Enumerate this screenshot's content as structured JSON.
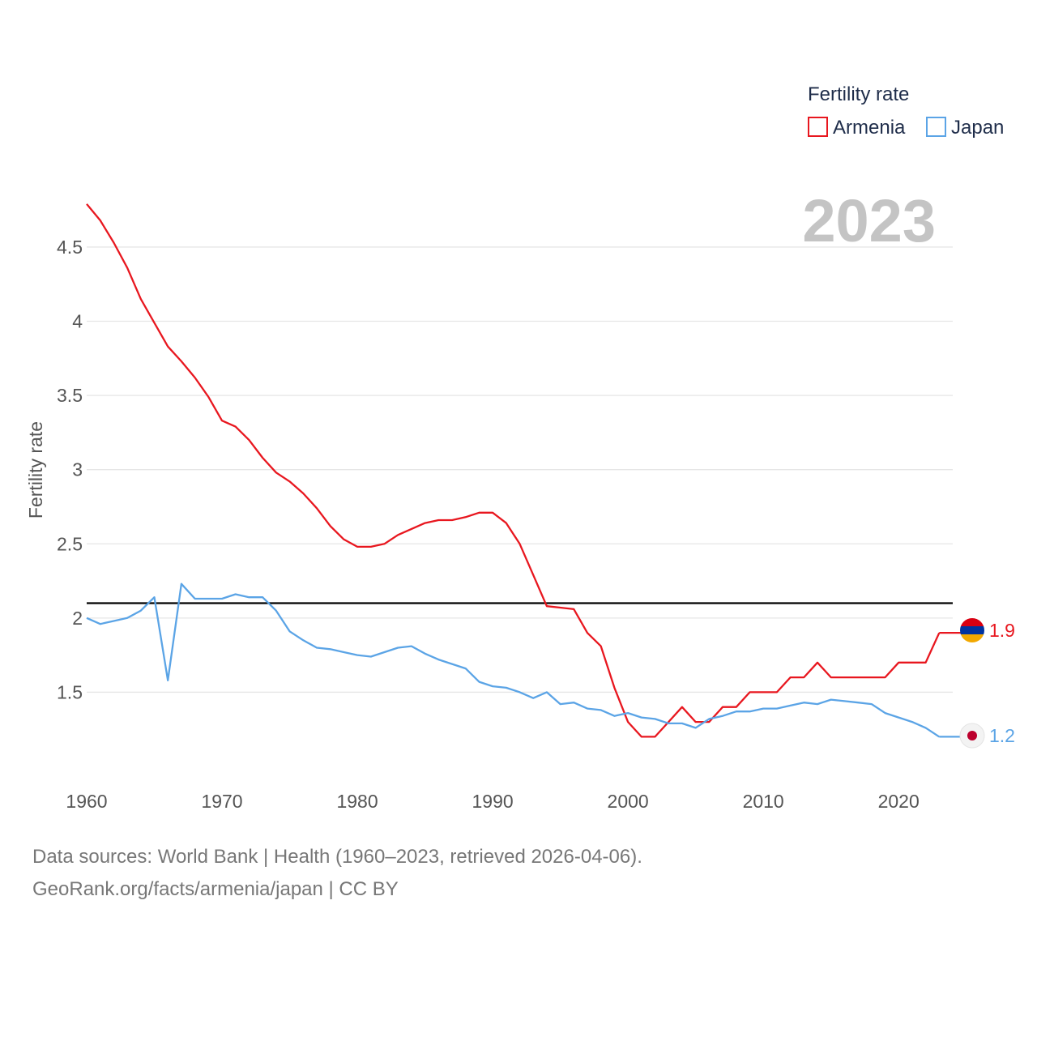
{
  "chart_data": {
    "type": "line",
    "title": "Fertility rate",
    "ylabel": "Fertility rate",
    "xlabel": "",
    "year_label": "2023",
    "xlim": [
      1960,
      2024
    ],
    "ylim": [
      1.0,
      4.8
    ],
    "x_ticks": [
      1960,
      1970,
      1980,
      1990,
      2000,
      2010,
      2020
    ],
    "y_ticks": [
      1.5,
      2,
      2.5,
      3,
      3.5,
      4,
      4.5
    ],
    "y_tick_labels": [
      "1.5",
      "2",
      "2.5",
      "3",
      "3.5",
      "4",
      "4.5"
    ],
    "reference_line": 2.1,
    "grid": true,
    "legend_position": "top-right",
    "x": [
      1960,
      1961,
      1962,
      1963,
      1964,
      1965,
      1966,
      1967,
      1968,
      1969,
      1970,
      1971,
      1972,
      1973,
      1974,
      1975,
      1976,
      1977,
      1978,
      1979,
      1980,
      1981,
      1982,
      1983,
      1984,
      1985,
      1986,
      1987,
      1988,
      1989,
      1990,
      1991,
      1992,
      1993,
      1994,
      1995,
      1996,
      1997,
      1998,
      1999,
      2000,
      2001,
      2002,
      2003,
      2004,
      2005,
      2006,
      2007,
      2008,
      2009,
      2010,
      2011,
      2012,
      2013,
      2014,
      2015,
      2016,
      2017,
      2018,
      2019,
      2020,
      2021,
      2022,
      2023
    ],
    "series": [
      {
        "name": "Armenia",
        "color": "#e8171f",
        "end_label": "1.9",
        "flag": "armenia-flag",
        "values": [
          4.79,
          4.68,
          4.53,
          4.36,
          4.15,
          3.99,
          3.83,
          3.73,
          3.62,
          3.49,
          3.33,
          3.29,
          3.2,
          3.08,
          2.98,
          2.92,
          2.84,
          2.74,
          2.62,
          2.53,
          2.48,
          2.48,
          2.5,
          2.56,
          2.6,
          2.64,
          2.66,
          2.66,
          2.68,
          2.71,
          2.71,
          2.64,
          2.5,
          2.29,
          2.08,
          2.07,
          2.06,
          1.9,
          1.81,
          1.53,
          1.3,
          1.2,
          1.2,
          1.3,
          1.4,
          1.3,
          1.3,
          1.4,
          1.4,
          1.5,
          1.5,
          1.5,
          1.6,
          1.6,
          1.7,
          1.6,
          1.6,
          1.6,
          1.6,
          1.6,
          1.7,
          1.7,
          1.7,
          1.9
        ]
      },
      {
        "name": "Japan",
        "color": "#5ba4e6",
        "end_label": "1.2",
        "flag": "japan-flag",
        "values": [
          2.0,
          1.96,
          1.98,
          2.0,
          2.05,
          2.14,
          1.58,
          2.23,
          2.13,
          2.13,
          2.13,
          2.16,
          2.14,
          2.14,
          2.05,
          1.91,
          1.85,
          1.8,
          1.79,
          1.77,
          1.75,
          1.74,
          1.77,
          1.8,
          1.81,
          1.76,
          1.72,
          1.69,
          1.66,
          1.57,
          1.54,
          1.53,
          1.5,
          1.46,
          1.5,
          1.42,
          1.43,
          1.39,
          1.38,
          1.34,
          1.36,
          1.33,
          1.32,
          1.29,
          1.29,
          1.26,
          1.32,
          1.34,
          1.37,
          1.37,
          1.39,
          1.39,
          1.41,
          1.43,
          1.42,
          1.45,
          1.44,
          1.43,
          1.42,
          1.36,
          1.33,
          1.3,
          1.26,
          1.2
        ]
      }
    ]
  },
  "footer": {
    "line1": "Data sources: World Bank | Health (1960–2023, retrieved 2026-04-06).",
    "line2": "GeoRank.org/facts/armenia/japan | CC BY"
  }
}
